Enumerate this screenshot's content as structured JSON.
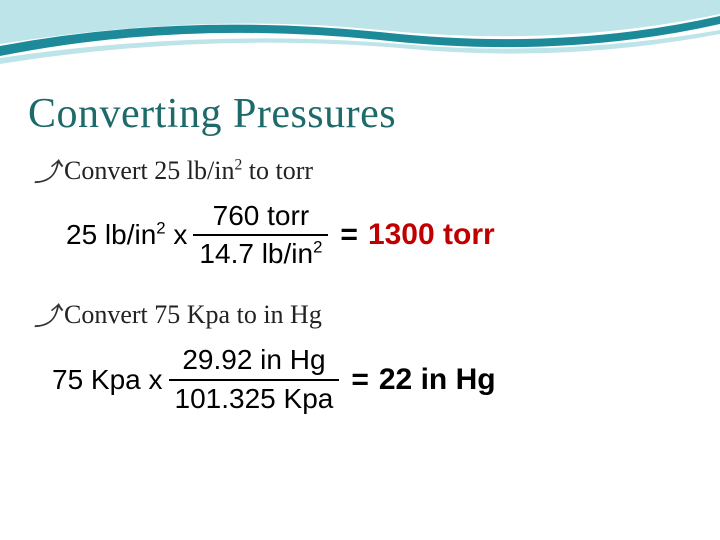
{
  "title": "Converting Pressures",
  "decor": {
    "wave_light": "#bde4e8",
    "wave_dark": "#1d8a9a",
    "title_color": "#1d6a6a"
  },
  "bullets": [
    {
      "text_html": "Convert 25 lb/in<span class=\"sup\">2</span> to torr",
      "equation": {
        "lhs_html": "25 lb/in<span class=\"sup\">2</span> x",
        "num": "760 torr",
        "den_html": "14.7 lb/in<span class=\"sup\">2</span>",
        "answer": "1300 torr",
        "answer_color": "#c00000"
      }
    },
    {
      "text_html": "Convert 75 Kpa to in Hg",
      "equation": {
        "lhs_html": "75 Kpa x",
        "num": "29.92 in Hg",
        "den_html": "101.325 Kpa",
        "answer": "22 in Hg",
        "answer_color": "#000000"
      }
    }
  ]
}
